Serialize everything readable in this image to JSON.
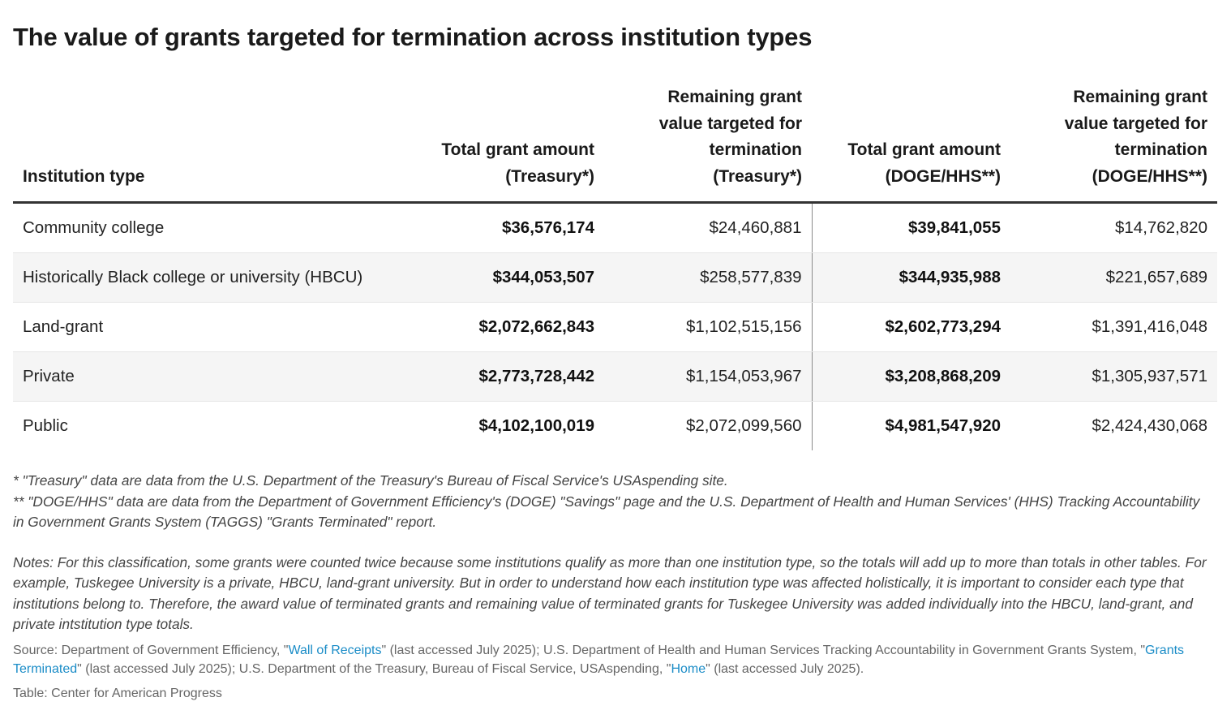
{
  "title": "The value of grants targeted for termination across institution types",
  "chart_data": {
    "type": "table",
    "title": "The value of grants targeted for termination across institution types",
    "columns": [
      "Institution type",
      "Total grant amount (Treasury*)",
      "Remaining grant value targeted for termination (Treasury*)",
      "Total grant amount (DOGE/HHS**)",
      "Remaining grant value targeted for termination (DOGE/HHS**)"
    ],
    "rows": [
      [
        "Community college",
        "$36,576,174",
        "$24,460,881",
        "$39,841,055",
        "$14,762,820"
      ],
      [
        "Historically Black college or university (HBCU)",
        "$344,053,507",
        "$258,577,839",
        "$344,935,988",
        "$221,657,689"
      ],
      [
        "Land-grant",
        "$2,072,662,843",
        "$1,102,515,156",
        "$2,602,773,294",
        "$1,391,416,048"
      ],
      [
        "Private",
        "$2,773,728,442",
        "$1,154,053,967",
        "$3,208,868,209",
        "$1,305,937,571"
      ],
      [
        "Public",
        "$4,102,100,019",
        "$2,072,099,560",
        "$4,981,547,920",
        "$2,424,430,068"
      ]
    ]
  },
  "header_lines": [
    [
      "Institution type"
    ],
    [
      "Total grant amount",
      "(Treasury*)"
    ],
    [
      "Remaining grant",
      "value targeted for",
      "termination",
      "(Treasury*)"
    ],
    [
      "Total grant amount",
      "(DOGE/HHS**)"
    ],
    [
      "Remaining grant",
      "value targeted for",
      "termination",
      "(DOGE/HHS**)"
    ]
  ],
  "footnotes": {
    "treasury": "* \"Treasury\" data are data from the U.S. Department of the Treasury's Bureau of Fiscal Service's USAspending site.",
    "doge_line1": "** \"DOGE/HHS\" data are data from the Department of Government Efficiency's (DOGE) \"Savings\" page and the U.S. Department of Health and Human Services' (HHS) Tracking Accountability",
    "doge_line2": "in Government Grants System (TAGGS) \"Grants Terminated\" report."
  },
  "notes": "Notes: For this classification, some grants were counted twice because some institutions qualify as more than one institution type, so the totals will add up to more than totals in other tables. For example, Tuskegee University is a private, HBCU, land-grant university. But in order to understand how each institution type was affected holistically, it is important to consider each type that institutions belong to. Therefore, the award value of terminated grants and remaining value of terminated grants for Tuskegee University was added individually into the HBCU, land-grant, and private intstitution type totals.",
  "source": {
    "prefix": "Source: Department of Government Efficiency, \"",
    "link1": "Wall of Receipts",
    "mid1": "\" (last accessed July 2025); U.S. Department of Health and Human Services Tracking Accountability in Government Grants System, \"",
    "link2": "Grants Terminated",
    "mid2": "\" (last accessed July 2025); U.S. Department of the Treasury, Bureau of Fiscal Service, USAspending, \"",
    "link3": "Home",
    "suffix": "\" (last accessed July 2025)."
  },
  "credit": "Table: Center for American Progress",
  "colors": {
    "text": "#222222",
    "link": "#1a8cc7",
    "stripe": "#f5f5f5",
    "rule": "#333333"
  }
}
